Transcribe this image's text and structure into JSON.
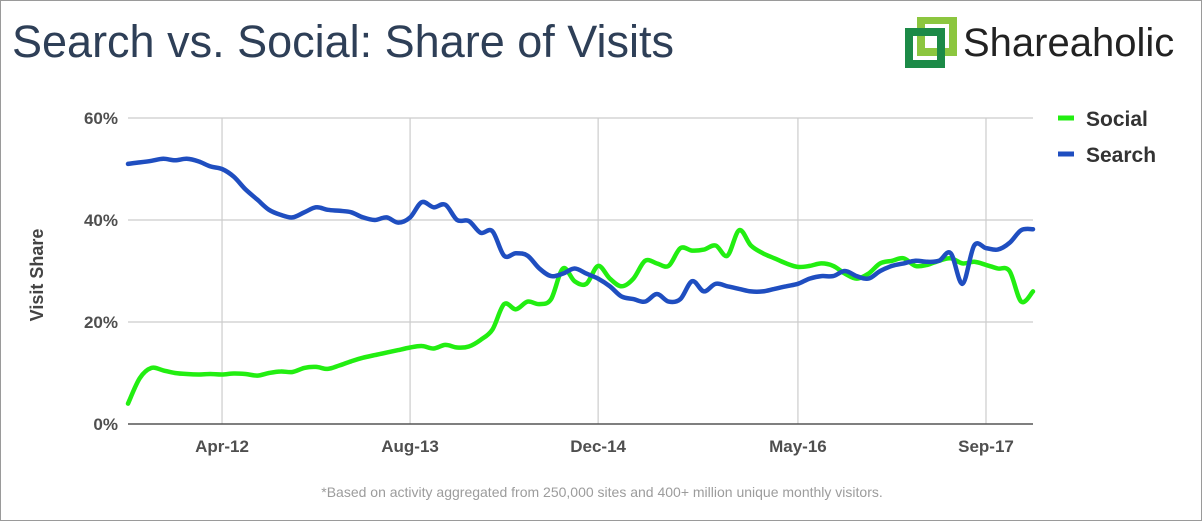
{
  "title": "Search vs. Social: Share of Visits",
  "brand": {
    "name": "Shareaholic",
    "icon": "shareaholic-logo-icon",
    "colors": [
      "#8cc63f",
      "#1c8a47"
    ]
  },
  "footnote": "*Based on activity aggregated from 250,000 sites and 400+ million unique monthly visitors.",
  "chart_data": {
    "type": "line",
    "ylabel": "Visit Share",
    "xlabel": "",
    "ylim": [
      0,
      60
    ],
    "yticks": [
      0,
      20,
      40,
      60
    ],
    "ytick_labels": [
      "0%",
      "20%",
      "40%",
      "60%"
    ],
    "xlim": [
      "2011-08",
      "2018-01"
    ],
    "xticks": [
      "2012-04",
      "2013-08",
      "2014-12",
      "2016-05",
      "2017-09"
    ],
    "xtick_labels": [
      "Apr-12",
      "Aug-13",
      "Dec-14",
      "May-16",
      "Sep-17"
    ],
    "grid": true,
    "legend": "right",
    "series": [
      {
        "name": "Social",
        "color": "#22ee11",
        "points": [
          [
            "2011-08",
            4
          ],
          [
            "2011-09",
            9
          ],
          [
            "2011-10",
            11
          ],
          [
            "2011-11",
            10.5
          ],
          [
            "2011-12",
            10
          ],
          [
            "2012-01",
            9.8
          ],
          [
            "2012-02",
            9.7
          ],
          [
            "2012-03",
            9.8
          ],
          [
            "2012-04",
            9.7
          ],
          [
            "2012-05",
            9.9
          ],
          [
            "2012-06",
            9.8
          ],
          [
            "2012-07",
            9.5
          ],
          [
            "2012-08",
            10
          ],
          [
            "2012-09",
            10.3
          ],
          [
            "2012-10",
            10.2
          ],
          [
            "2012-11",
            11
          ],
          [
            "2012-12",
            11.2
          ],
          [
            "2013-01",
            10.8
          ],
          [
            "2013-02",
            11.5
          ],
          [
            "2013-03",
            12.3
          ],
          [
            "2013-04",
            13
          ],
          [
            "2013-05",
            13.5
          ],
          [
            "2013-06",
            14
          ],
          [
            "2013-07",
            14.5
          ],
          [
            "2013-08",
            15
          ],
          [
            "2013-09",
            15.3
          ],
          [
            "2013-10",
            14.8
          ],
          [
            "2013-11",
            15.5
          ],
          [
            "2013-12",
            15
          ],
          [
            "2014-01",
            15.2
          ],
          [
            "2014-02",
            16.5
          ],
          [
            "2014-03",
            18.5
          ],
          [
            "2014-04",
            23.5
          ],
          [
            "2014-05",
            22.5
          ],
          [
            "2014-06",
            24
          ],
          [
            "2014-07",
            23.5
          ],
          [
            "2014-08",
            24.5
          ],
          [
            "2014-09",
            30.5
          ],
          [
            "2014-10",
            28
          ],
          [
            "2014-11",
            27.5
          ],
          [
            "2014-12",
            31
          ],
          [
            "2015-01",
            28.5
          ],
          [
            "2015-02",
            27
          ],
          [
            "2015-03",
            28.5
          ],
          [
            "2015-04",
            32
          ],
          [
            "2015-05",
            31.5
          ],
          [
            "2015-06",
            31
          ],
          [
            "2015-07",
            34.5
          ],
          [
            "2015-08",
            34
          ],
          [
            "2015-09",
            34.2
          ],
          [
            "2015-10",
            35
          ],
          [
            "2015-11",
            33
          ],
          [
            "2015-12",
            38
          ],
          [
            "2016-01",
            35
          ],
          [
            "2016-02",
            33.5
          ],
          [
            "2016-03",
            32.5
          ],
          [
            "2016-04",
            31.5
          ],
          [
            "2016-05",
            30.8
          ],
          [
            "2016-06",
            31
          ],
          [
            "2016-07",
            31.5
          ],
          [
            "2016-08",
            31
          ],
          [
            "2016-09",
            29.5
          ],
          [
            "2016-10",
            28.5
          ],
          [
            "2016-11",
            29.5
          ],
          [
            "2016-12",
            31.5
          ],
          [
            "2017-01",
            32
          ],
          [
            "2017-02",
            32.5
          ],
          [
            "2017-03",
            31
          ],
          [
            "2017-04",
            31.2
          ],
          [
            "2017-05",
            32
          ],
          [
            "2017-06",
            32.5
          ],
          [
            "2017-07",
            31.5
          ],
          [
            "2017-08",
            31.8
          ],
          [
            "2017-09",
            31.2
          ],
          [
            "2017-10",
            30.5
          ],
          [
            "2017-11",
            30
          ],
          [
            "2017-12",
            24
          ],
          [
            "2018-01",
            26
          ]
        ]
      },
      {
        "name": "Search",
        "color": "#1f4ec0",
        "points": [
          [
            "2011-08",
            51
          ],
          [
            "2011-09",
            51.3
          ],
          [
            "2011-10",
            51.6
          ],
          [
            "2011-11",
            52
          ],
          [
            "2011-12",
            51.7
          ],
          [
            "2012-01",
            52
          ],
          [
            "2012-02",
            51.5
          ],
          [
            "2012-03",
            50.5
          ],
          [
            "2012-04",
            50
          ],
          [
            "2012-05",
            48.5
          ],
          [
            "2012-06",
            46
          ],
          [
            "2012-07",
            44
          ],
          [
            "2012-08",
            42
          ],
          [
            "2012-09",
            41
          ],
          [
            "2012-10",
            40.5
          ],
          [
            "2012-11",
            41.5
          ],
          [
            "2012-12",
            42.5
          ],
          [
            "2013-01",
            42
          ],
          [
            "2013-02",
            41.8
          ],
          [
            "2013-03",
            41.5
          ],
          [
            "2013-04",
            40.5
          ],
          [
            "2013-05",
            40
          ],
          [
            "2013-06",
            40.5
          ],
          [
            "2013-07",
            39.5
          ],
          [
            "2013-08",
            40.5
          ],
          [
            "2013-09",
            43.5
          ],
          [
            "2013-10",
            42.5
          ],
          [
            "2013-11",
            43
          ],
          [
            "2013-12",
            40
          ],
          [
            "2014-01",
            39.8
          ],
          [
            "2014-02",
            37.5
          ],
          [
            "2014-03",
            37.8
          ],
          [
            "2014-04",
            33
          ],
          [
            "2014-05",
            33.5
          ],
          [
            "2014-06",
            33
          ],
          [
            "2014-07",
            30.5
          ],
          [
            "2014-08",
            29
          ],
          [
            "2014-09",
            29.5
          ],
          [
            "2014-10",
            30.5
          ],
          [
            "2014-11",
            29.5
          ],
          [
            "2014-12",
            28.5
          ],
          [
            "2015-01",
            27
          ],
          [
            "2015-02",
            25
          ],
          [
            "2015-03",
            24.5
          ],
          [
            "2015-04",
            24
          ],
          [
            "2015-05",
            25.5
          ],
          [
            "2015-06",
            24
          ],
          [
            "2015-07",
            24.5
          ],
          [
            "2015-08",
            28
          ],
          [
            "2015-09",
            26
          ],
          [
            "2015-10",
            27.5
          ],
          [
            "2015-11",
            27
          ],
          [
            "2015-12",
            26.5
          ],
          [
            "2016-01",
            26
          ],
          [
            "2016-02",
            26
          ],
          [
            "2016-03",
            26.5
          ],
          [
            "2016-04",
            27
          ],
          [
            "2016-05",
            27.5
          ],
          [
            "2016-06",
            28.5
          ],
          [
            "2016-07",
            29
          ],
          [
            "2016-08",
            29
          ],
          [
            "2016-09",
            30
          ],
          [
            "2016-10",
            29
          ],
          [
            "2016-11",
            28.5
          ],
          [
            "2016-12",
            30
          ],
          [
            "2017-01",
            31
          ],
          [
            "2017-02",
            31.5
          ],
          [
            "2017-03",
            32
          ],
          [
            "2017-04",
            31.8
          ],
          [
            "2017-05",
            32
          ],
          [
            "2017-06",
            33.5
          ],
          [
            "2017-07",
            27.5
          ],
          [
            "2017-08",
            35
          ],
          [
            "2017-09",
            34.5
          ],
          [
            "2017-10",
            34.2
          ],
          [
            "2017-11",
            35.5
          ],
          [
            "2017-12",
            38
          ],
          [
            "2018-01",
            38.2
          ]
        ]
      }
    ]
  }
}
